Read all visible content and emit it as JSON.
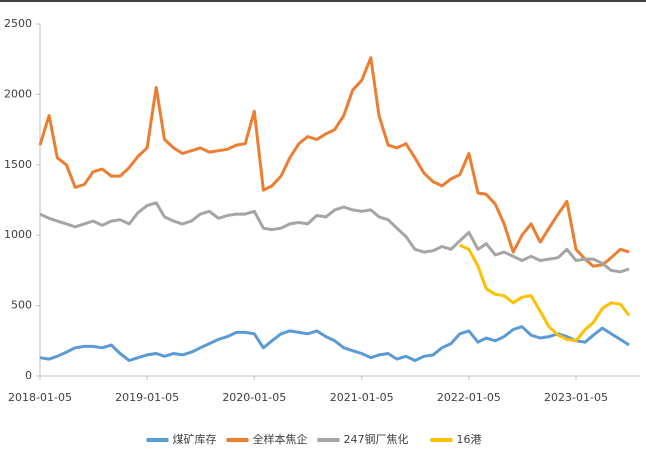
{
  "chart_data": {
    "type": "line",
    "x": [
      "2018-01-05",
      "2018-02-05",
      "2018-03-05",
      "2018-04-05",
      "2018-05-05",
      "2018-06-05",
      "2018-07-05",
      "2018-08-05",
      "2018-09-05",
      "2018-10-05",
      "2018-11-05",
      "2018-12-05",
      "2019-01-05",
      "2019-02-05",
      "2019-03-05",
      "2019-04-05",
      "2019-05-05",
      "2019-06-05",
      "2019-07-05",
      "2019-08-05",
      "2019-09-05",
      "2019-10-05",
      "2019-11-05",
      "2019-12-05",
      "2020-01-05",
      "2020-02-05",
      "2020-03-05",
      "2020-04-05",
      "2020-05-05",
      "2020-06-05",
      "2020-07-05",
      "2020-08-05",
      "2020-09-05",
      "2020-10-05",
      "2020-11-05",
      "2020-12-05",
      "2021-01-05",
      "2021-02-05",
      "2021-03-05",
      "2021-04-05",
      "2021-05-05",
      "2021-06-05",
      "2021-07-05",
      "2021-08-05",
      "2021-09-05",
      "2021-10-05",
      "2021-11-05",
      "2021-12-05",
      "2022-01-05",
      "2022-02-05",
      "2022-03-05",
      "2022-04-05",
      "2022-05-05",
      "2022-06-05",
      "2022-07-05",
      "2022-08-05",
      "2022-09-05",
      "2022-10-05",
      "2022-11-05",
      "2022-12-05",
      "2023-01-05",
      "2023-02-05",
      "2023-03-05",
      "2023-04-05",
      "2023-05-05",
      "2023-06-05",
      "2023-07-05"
    ],
    "series": [
      {
        "name": "煤矿库存",
        "color": "#5b9bd5",
        "values": [
          130,
          120,
          140,
          170,
          200,
          210,
          210,
          200,
          220,
          160,
          110,
          130,
          150,
          160,
          140,
          160,
          150,
          170,
          200,
          230,
          260,
          280,
          310,
          310,
          300,
          200,
          250,
          300,
          320,
          310,
          300,
          320,
          280,
          250,
          200,
          180,
          160,
          130,
          150,
          160,
          120,
          140,
          110,
          140,
          150,
          200,
          230,
          300,
          320,
          240,
          270,
          250,
          280,
          330,
          350,
          290,
          270,
          280,
          300,
          280,
          250,
          240,
          290,
          340,
          300,
          260,
          220
        ]
      },
      {
        "name": "全样本焦企",
        "color": "#ed7d31",
        "values": [
          1640,
          1850,
          1550,
          1500,
          1340,
          1360,
          1450,
          1470,
          1420,
          1420,
          1480,
          1560,
          1620,
          2050,
          1680,
          1620,
          1580,
          1600,
          1620,
          1590,
          1600,
          1610,
          1640,
          1650,
          1880,
          1320,
          1350,
          1420,
          1550,
          1650,
          1700,
          1680,
          1720,
          1750,
          1850,
          2030,
          2100,
          2260,
          1850,
          1640,
          1620,
          1650,
          1550,
          1440,
          1380,
          1350,
          1400,
          1430,
          1580,
          1300,
          1290,
          1220,
          1080,
          880,
          1000,
          1080,
          950,
          1050,
          1150,
          1240,
          900,
          830,
          780,
          790,
          840,
          900,
          880
        ]
      },
      {
        "name": "247钢厂焦化",
        "color": "#a5a5a5",
        "values": [
          1150,
          1120,
          1100,
          1080,
          1060,
          1080,
          1100,
          1070,
          1100,
          1110,
          1080,
          1160,
          1210,
          1230,
          1130,
          1100,
          1080,
          1100,
          1150,
          1170,
          1120,
          1140,
          1150,
          1150,
          1170,
          1050,
          1040,
          1050,
          1080,
          1090,
          1080,
          1140,
          1130,
          1180,
          1200,
          1180,
          1170,
          1180,
          1130,
          1110,
          1050,
          990,
          900,
          880,
          890,
          920,
          900,
          960,
          1020,
          900,
          940,
          860,
          880,
          850,
          820,
          850,
          820,
          830,
          840,
          900,
          820,
          830,
          830,
          800,
          750,
          740,
          760
        ]
      },
      {
        "name": "16港",
        "color": "#ffc000",
        "values": [
          null,
          null,
          null,
          null,
          null,
          null,
          null,
          null,
          null,
          null,
          null,
          null,
          null,
          null,
          null,
          null,
          null,
          null,
          null,
          null,
          null,
          null,
          null,
          null,
          null,
          null,
          null,
          null,
          null,
          null,
          null,
          null,
          null,
          null,
          null,
          null,
          null,
          null,
          null,
          null,
          null,
          null,
          null,
          null,
          null,
          null,
          null,
          930,
          900,
          780,
          620,
          580,
          570,
          520,
          560,
          570,
          460,
          350,
          290,
          260,
          250,
          330,
          380,
          480,
          520,
          510,
          430
        ]
      }
    ],
    "xlim": [
      "2018-01-05",
      "2023-08-11"
    ],
    "xticks": [
      "2018-01-05",
      "2019-01-05",
      "2020-01-05",
      "2021-01-05",
      "2022-01-05",
      "2023-01-05"
    ],
    "ylim": [
      0,
      2500
    ],
    "yticks": [
      0,
      500,
      1000,
      1500,
      2000,
      2500
    ],
    "grid": false,
    "legend": "bottom"
  }
}
